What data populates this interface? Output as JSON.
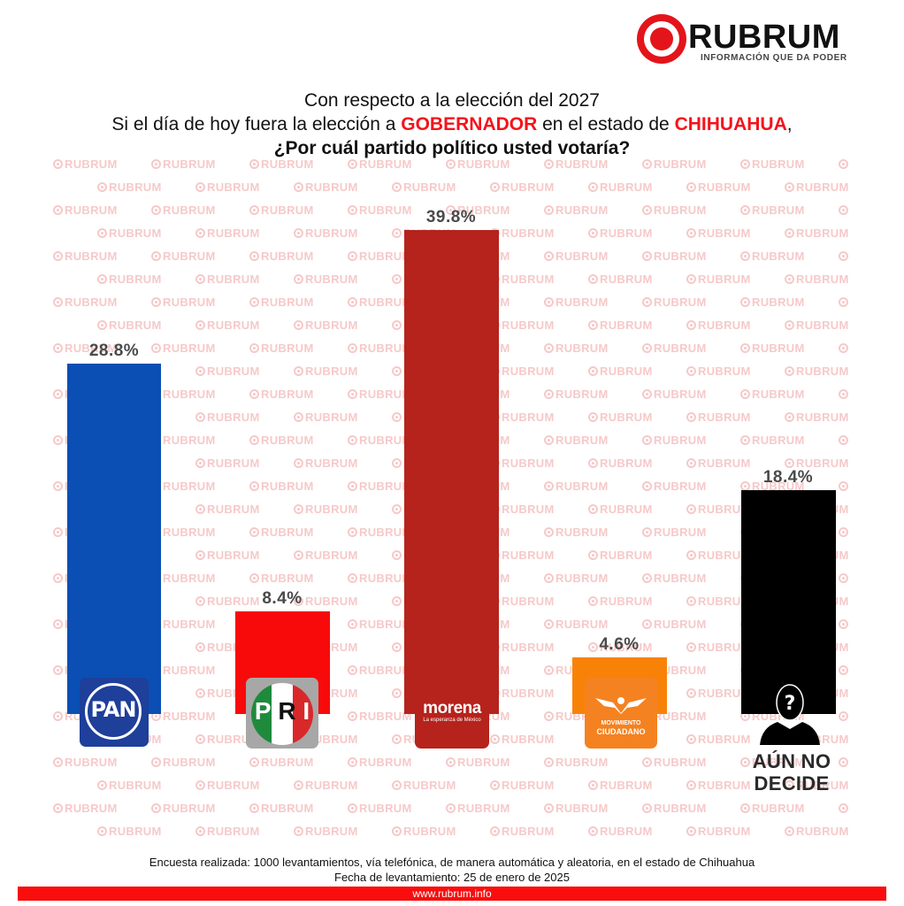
{
  "brand": {
    "name": "RUBRUM",
    "tagline": "INFORMACIÓN QUE DA PODER",
    "accent_color": "#e3151a",
    "watermark_text": "RUBRUM"
  },
  "title": {
    "line1": "Con respecto a la elección del 2027",
    "line2_pre": "Si el día de hoy fuera la elección a ",
    "line2_highlight1": "GOBERNADOR",
    "line2_mid": " en el estado de ",
    "line2_highlight2": "CHIHUAHUA",
    "line2_post": ",",
    "line3": "¿Por cuál partido político usted votaría?"
  },
  "bars": [
    {
      "party": "PAN",
      "value": 28.8,
      "label": "28.8%",
      "color": "#0b4fb4",
      "logo_text": "PAN"
    },
    {
      "party": "PRI",
      "value": 8.4,
      "label": "8.4%",
      "color": "#f80a0a",
      "logo_text": "PRI"
    },
    {
      "party": "morena",
      "value": 39.8,
      "label": "39.8%",
      "color": "#b5231c",
      "logo_text": "morena",
      "logo_subtext": "La esperanza de México"
    },
    {
      "party": "Movimiento Ciudadano",
      "value": 4.6,
      "label": "4.6%",
      "color": "#f88208",
      "logo_text_1": "MOVIMIENTO",
      "logo_text_2": "CIUDADANO"
    },
    {
      "party": "Aún no decide",
      "value": 18.4,
      "label": "18.4%",
      "color": "#000000",
      "label_line1": "AÚN NO",
      "label_line2": "DECIDE"
    }
  ],
  "chart_data": {
    "type": "bar",
    "title": "Con respecto a la elección del 2027. Si el día de hoy fuera la elección a GOBERNADOR en el estado de CHIHUAHUA, ¿Por cuál partido político usted votaría?",
    "categories": [
      "PAN",
      "PRI",
      "morena",
      "Movimiento Ciudadano",
      "Aún no decide"
    ],
    "values": [
      28.8,
      8.4,
      39.8,
      4.6,
      18.4
    ],
    "colors": [
      "#0b4fb4",
      "#f80a0a",
      "#b5231c",
      "#f88208",
      "#000000"
    ],
    "data_labels": [
      "28.8%",
      "8.4%",
      "39.8%",
      "4.6%",
      "18.4%"
    ],
    "xlabel": "",
    "ylabel": "",
    "unit": "%",
    "grid": false,
    "legend": "none (party logos under bars)"
  },
  "footer": {
    "survey_note": "Encuesta realizada: 1000 levantamientos, vía telefónica, de manera automática y aleatoria, en el estado de Chihuahua",
    "date_note": "Fecha de levantamiento: 25 de enero de 2025",
    "url": "www.rubrum.info"
  }
}
